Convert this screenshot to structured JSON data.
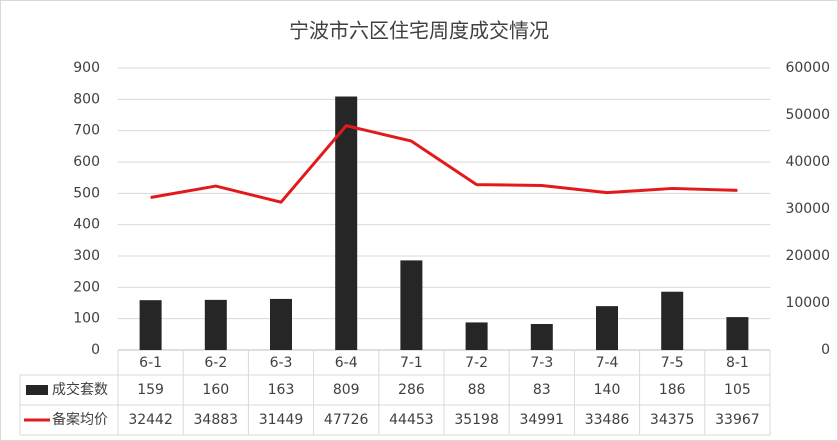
{
  "chart_data": {
    "type": "bar",
    "title": "宁波市六区住宅周度成交情况",
    "categories": [
      "6-1",
      "6-2",
      "6-3",
      "6-4",
      "7-1",
      "7-2",
      "7-3",
      "7-4",
      "7-5",
      "8-1"
    ],
    "series": [
      {
        "name": "成交套数",
        "type": "bar",
        "color": "#262626",
        "values": [
          159,
          160,
          163,
          809,
          286,
          88,
          83,
          140,
          186,
          105
        ]
      },
      {
        "name": "备案均价",
        "type": "line",
        "axis": "y2",
        "color": "#e31a1c",
        "values": [
          32442,
          34883,
          31449,
          47726,
          44453,
          35198,
          34991,
          33486,
          34375,
          33967
        ]
      }
    ],
    "ylim": [
      0,
      900
    ],
    "yticks": [
      0,
      100,
      200,
      300,
      400,
      500,
      600,
      700,
      800,
      900
    ],
    "y2lim": [
      0,
      60000
    ],
    "y2ticks": [
      0,
      10000,
      20000,
      30000,
      40000,
      50000,
      60000
    ],
    "grid": true
  }
}
